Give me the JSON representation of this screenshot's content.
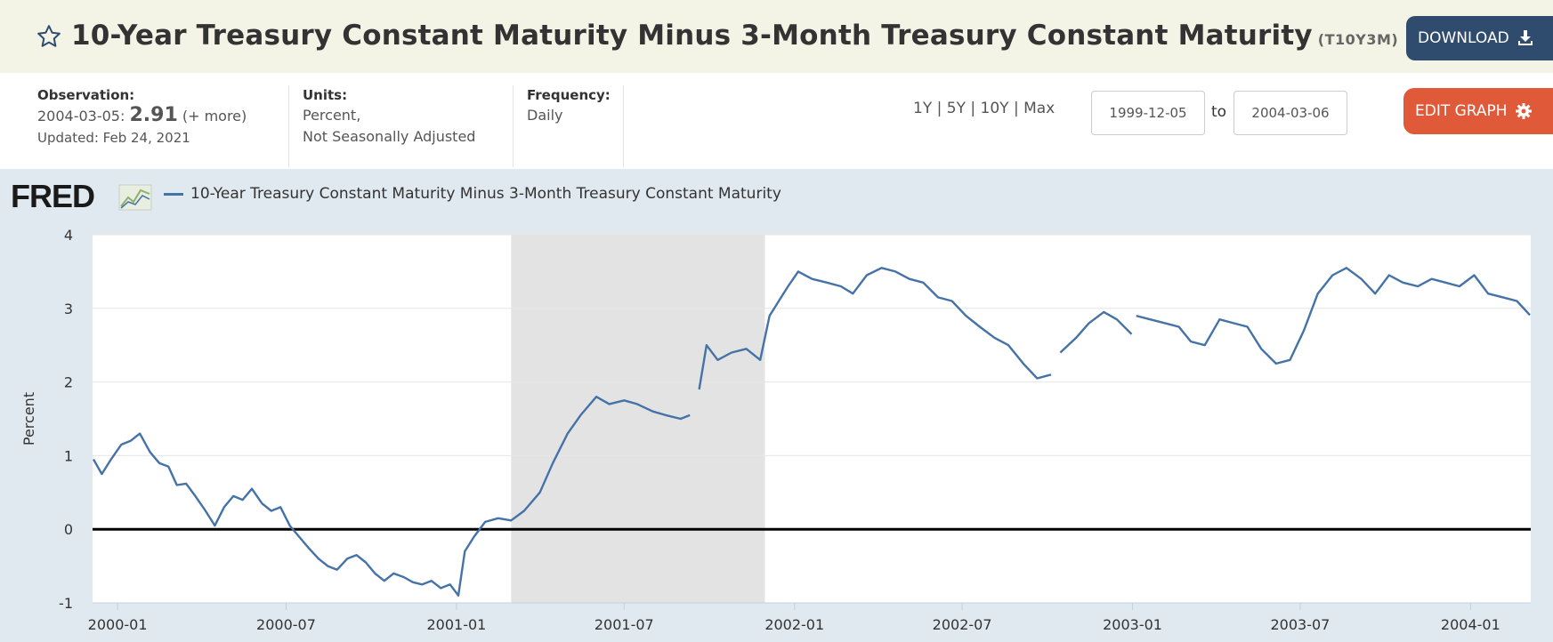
{
  "header": {
    "title": "10-Year Treasury Constant Maturity Minus 3-Month Treasury Constant Maturity",
    "series_id": "(T10Y3M)",
    "download_label": "DOWNLOAD",
    "edit_label": "EDIT GRAPH"
  },
  "meta": {
    "observation_label": "Observation:",
    "observation_date": "2004-03-05:",
    "observation_value": "2.91",
    "observation_more": "(+ more)",
    "updated": "Updated: Feb 24, 2021",
    "units_label": "Units:",
    "units_line1": "Percent,",
    "units_line2": "Not Seasonally Adjusted",
    "frequency_label": "Frequency:",
    "frequency_value": "Daily"
  },
  "ranges": [
    "1Y",
    "5Y",
    "10Y",
    "Max"
  ],
  "range_sep": "|",
  "date_from": "1999-12-05",
  "date_to_label": "to",
  "date_to": "2004-03-06",
  "logo_text": "FRED",
  "colors": {
    "line": "#4572a7",
    "recession": "#e3e3e3",
    "download": "#2f4b6e",
    "edit": "#e05a3a"
  },
  "chart_data": {
    "type": "line",
    "ylabel": "Percent",
    "ylim": [
      -1,
      4
    ],
    "yticks": [
      -1,
      0,
      1,
      2,
      3,
      4
    ],
    "xlim": [
      "1999-12-05",
      "2004-03-06"
    ],
    "xticks": [
      "2000-01",
      "2000-07",
      "2001-01",
      "2001-07",
      "2002-01",
      "2002-07",
      "2003-01",
      "2003-07",
      "2004-01"
    ],
    "grid": true,
    "legend_position": "top-left",
    "recession_shading": [
      [
        "2001-03-01",
        "2001-11-30"
      ]
    ],
    "series": [
      {
        "name": "10-Year Treasury Constant Maturity Minus 3-Month Treasury Constant Maturity",
        "points": [
          [
            "1999-12-06",
            0.95
          ],
          [
            "1999-12-15",
            0.75
          ],
          [
            "1999-12-25",
            0.95
          ],
          [
            "2000-01-05",
            1.15
          ],
          [
            "2000-01-15",
            1.2
          ],
          [
            "2000-01-25",
            1.3
          ],
          [
            "2000-02-05",
            1.05
          ],
          [
            "2000-02-15",
            0.9
          ],
          [
            "2000-02-25",
            0.85
          ],
          [
            "2000-03-05",
            0.6
          ],
          [
            "2000-03-15",
            0.62
          ],
          [
            "2000-03-25",
            0.45
          ],
          [
            "2000-04-05",
            0.25
          ],
          [
            "2000-04-15",
            0.05
          ],
          [
            "2000-04-25",
            0.3
          ],
          [
            "2000-05-05",
            0.45
          ],
          [
            "2000-05-15",
            0.4
          ],
          [
            "2000-05-25",
            0.55
          ],
          [
            "2000-06-05",
            0.35
          ],
          [
            "2000-06-15",
            0.25
          ],
          [
            "2000-06-25",
            0.3
          ],
          [
            "2000-07-05",
            0.05
          ],
          [
            "2000-07-15",
            -0.1
          ],
          [
            "2000-07-25",
            -0.25
          ],
          [
            "2000-08-05",
            -0.4
          ],
          [
            "2000-08-15",
            -0.5
          ],
          [
            "2000-08-25",
            -0.55
          ],
          [
            "2000-09-05",
            -0.4
          ],
          [
            "2000-09-15",
            -0.35
          ],
          [
            "2000-09-25",
            -0.45
          ],
          [
            "2000-10-05",
            -0.6
          ],
          [
            "2000-10-15",
            -0.7
          ],
          [
            "2000-10-25",
            -0.6
          ],
          [
            "2000-11-05",
            -0.65
          ],
          [
            "2000-11-15",
            -0.72
          ],
          [
            "2000-11-25",
            -0.75
          ],
          [
            "2000-12-05",
            -0.7
          ],
          [
            "2000-12-15",
            -0.8
          ],
          [
            "2000-12-25",
            -0.75
          ],
          [
            "2001-01-03",
            -0.9
          ],
          [
            "2001-01-10",
            -0.3
          ],
          [
            "2001-01-20",
            -0.1
          ],
          [
            "2001-02-01",
            0.1
          ],
          [
            "2001-02-15",
            0.15
          ],
          [
            "2001-03-01",
            0.12
          ],
          [
            "2001-03-15",
            0.25
          ],
          [
            "2001-04-01",
            0.5
          ],
          [
            "2001-04-15",
            0.9
          ],
          [
            "2001-05-01",
            1.3
          ],
          [
            "2001-05-15",
            1.55
          ],
          [
            "2001-06-01",
            1.8
          ],
          [
            "2001-06-15",
            1.7
          ],
          [
            "2001-07-01",
            1.75
          ],
          [
            "2001-07-15",
            1.7
          ],
          [
            "2001-08-01",
            1.6
          ],
          [
            "2001-08-15",
            1.55
          ],
          [
            "2001-08-31",
            1.5
          ],
          [
            "2001-09-10",
            1.55
          ],
          null,
          [
            "2001-09-20",
            1.9
          ],
          [
            "2001-09-28",
            2.5
          ],
          [
            "2001-10-10",
            2.3
          ],
          [
            "2001-10-25",
            2.4
          ],
          [
            "2001-11-10",
            2.45
          ],
          [
            "2001-11-25",
            2.3
          ],
          [
            "2001-12-05",
            2.9
          ],
          [
            "2001-12-15",
            3.1
          ],
          [
            "2001-12-25",
            3.3
          ],
          [
            "2002-01-05",
            3.5
          ],
          [
            "2002-01-20",
            3.4
          ],
          [
            "2002-02-05",
            3.35
          ],
          [
            "2002-02-20",
            3.3
          ],
          [
            "2002-03-05",
            3.2
          ],
          [
            "2002-03-20",
            3.45
          ],
          [
            "2002-04-05",
            3.55
          ],
          [
            "2002-04-20",
            3.5
          ],
          [
            "2002-05-05",
            3.4
          ],
          [
            "2002-05-20",
            3.35
          ],
          [
            "2002-06-05",
            3.15
          ],
          [
            "2002-06-20",
            3.1
          ],
          [
            "2002-07-05",
            2.9
          ],
          [
            "2002-07-20",
            2.75
          ],
          [
            "2002-08-05",
            2.6
          ],
          [
            "2002-08-20",
            2.5
          ],
          [
            "2002-09-05",
            2.25
          ],
          [
            "2002-09-20",
            2.05
          ],
          [
            "2002-10-05",
            2.1
          ],
          null,
          [
            "2002-10-15",
            2.4
          ],
          [
            "2002-11-01",
            2.6
          ],
          [
            "2002-11-15",
            2.8
          ],
          [
            "2002-12-01",
            2.95
          ],
          [
            "2002-12-15",
            2.85
          ],
          [
            "2002-12-31",
            2.65
          ],
          null,
          [
            "2003-01-05",
            2.9
          ],
          [
            "2003-01-20",
            2.85
          ],
          [
            "2003-02-05",
            2.8
          ],
          [
            "2003-02-20",
            2.75
          ],
          [
            "2003-03-05",
            2.55
          ],
          [
            "2003-03-20",
            2.5
          ],
          [
            "2003-04-05",
            2.85
          ],
          [
            "2003-04-20",
            2.8
          ],
          [
            "2003-05-05",
            2.75
          ],
          [
            "2003-05-20",
            2.45
          ],
          [
            "2003-06-05",
            2.25
          ],
          [
            "2003-06-20",
            2.3
          ],
          [
            "2003-07-05",
            2.7
          ],
          [
            "2003-07-20",
            3.2
          ],
          [
            "2003-08-05",
            3.45
          ],
          [
            "2003-08-20",
            3.55
          ],
          [
            "2003-09-05",
            3.4
          ],
          [
            "2003-09-20",
            3.2
          ],
          [
            "2003-10-05",
            3.45
          ],
          [
            "2003-10-20",
            3.35
          ],
          [
            "2003-11-05",
            3.3
          ],
          [
            "2003-11-20",
            3.4
          ],
          [
            "2003-12-05",
            3.35
          ],
          [
            "2003-12-20",
            3.3
          ],
          [
            "2004-01-05",
            3.45
          ],
          [
            "2004-01-20",
            3.2
          ],
          [
            "2004-02-05",
            3.15
          ],
          [
            "2004-02-20",
            3.1
          ],
          [
            "2004-03-05",
            2.91
          ]
        ]
      }
    ]
  }
}
